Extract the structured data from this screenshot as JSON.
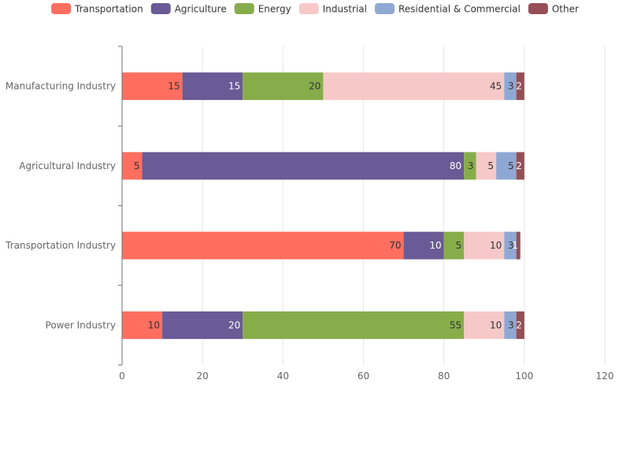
{
  "chart_data": {
    "type": "bar",
    "orientation": "horizontal",
    "stacked": true,
    "categories": [
      "Manufacturing Industry",
      "Agricultural Industry",
      "Transportation Industry",
      "Power Industry"
    ],
    "series": [
      {
        "name": "Transportation",
        "values": [
          15,
          5,
          70,
          10
        ],
        "color": "#ff6e5f",
        "label_color": "#333333"
      },
      {
        "name": "Agriculture",
        "values": [
          15,
          80,
          10,
          20
        ],
        "color": "#6a5a95",
        "label_color": "#ffffff"
      },
      {
        "name": "Energy",
        "values": [
          20,
          3,
          5,
          55
        ],
        "color": "#87ad4a",
        "label_color": "#333333"
      },
      {
        "name": "Industrial",
        "values": [
          45,
          5,
          10,
          10
        ],
        "color": "#f6c9c8",
        "label_color": "#333333"
      },
      {
        "name": "Residential & Commercial",
        "values": [
          3,
          5,
          3,
          3
        ],
        "color": "#8fa8d3",
        "label_color": "#333333"
      },
      {
        "name": "Other",
        "values": [
          2,
          2,
          1,
          2
        ],
        "color": "#954f55",
        "label_color": "#ffffff"
      }
    ],
    "xlim": [
      0,
      120
    ],
    "xticks": [
      0,
      20,
      40,
      60,
      80,
      100,
      120
    ],
    "grid": true,
    "legend_position": "top"
  }
}
